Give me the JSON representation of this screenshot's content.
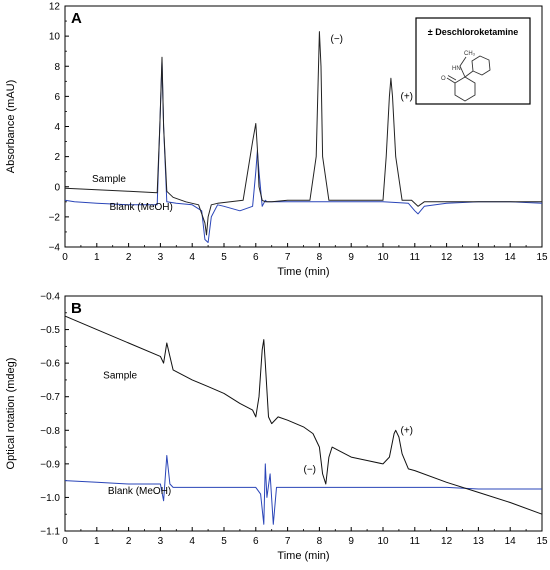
{
  "chart_data": [
    {
      "type": "line",
      "panel": "A",
      "xlabel": "Time (min)",
      "ylabel": "Absorbance (mAU)",
      "xlim": [
        0,
        15
      ],
      "ylim": [
        -4,
        12
      ],
      "xticks": [
        0,
        1,
        2,
        3,
        4,
        5,
        6,
        7,
        8,
        9,
        10,
        11,
        12,
        13,
        14,
        15
      ],
      "yticks": [
        -4,
        -2,
        0,
        2,
        4,
        6,
        8,
        10,
        12
      ],
      "grid": false,
      "inset": {
        "title": "± Deschloroketamine",
        "labels": [
          "HN",
          "CH₃",
          "O"
        ]
      },
      "annotations": [
        {
          "text": "(−)",
          "x": 8.35,
          "y": 9.6
        },
        {
          "text": "(+)",
          "x": 10.55,
          "y": 5.8
        }
      ],
      "series": [
        {
          "name": "Sample",
          "color": "#222222",
          "label_at": [
            0.85,
            0.3
          ],
          "x": [
            0,
            1,
            2,
            2.9,
            2.98,
            3.05,
            3.1,
            3.2,
            3.4,
            3.8,
            4.2,
            4.4,
            4.45,
            4.5,
            4.6,
            4.8,
            5.2,
            5.6,
            5.9,
            6.0,
            6.05,
            6.1,
            6.2,
            6.3,
            6.5,
            7.0,
            7.7,
            7.9,
            8.0,
            8.05,
            8.1,
            8.3,
            9.0,
            10.0,
            10.1,
            10.2,
            10.25,
            10.3,
            10.4,
            10.6,
            10.9,
            11.1,
            11.3,
            12,
            13,
            14,
            15
          ],
          "y": [
            -0.1,
            -0.2,
            -0.3,
            -0.4,
            4,
            8.6,
            4,
            -0.3,
            -0.7,
            -1.0,
            -1.2,
            -2.4,
            -3.2,
            -2,
            -1.2,
            -1.1,
            -1.0,
            -0.9,
            3.0,
            4.2,
            2.5,
            0,
            -0.9,
            -1.0,
            -1.0,
            -0.9,
            -0.9,
            2,
            10.3,
            8,
            2,
            -0.9,
            -0.9,
            -0.9,
            2,
            6,
            7.2,
            6,
            2,
            -0.9,
            -0.9,
            -1.3,
            -1.0,
            -1.0,
            -1.0,
            -1.0,
            -1.0
          ]
        },
        {
          "name": "Blank (MeOH)",
          "color": "#2a45b8",
          "label_at": [
            1.4,
            -1.55
          ],
          "x": [
            0,
            0.3,
            1,
            2,
            2.9,
            2.98,
            3.05,
            3.1,
            3.2,
            3.5,
            4.0,
            4.3,
            4.4,
            4.5,
            4.6,
            4.8,
            5.0,
            5.5,
            5.9,
            6.0,
            6.05,
            6.1,
            6.2,
            6.3,
            6.35,
            6.5,
            7.0,
            8.0,
            9.0,
            10.0,
            10.8,
            11.0,
            11.1,
            11.3,
            12,
            13,
            14,
            15
          ],
          "y": [
            -0.9,
            -1.0,
            -1.1,
            -1.2,
            -1.2,
            4,
            8.3,
            4,
            -1.0,
            -1.1,
            -1.2,
            -1.6,
            -3.5,
            -3.7,
            -2,
            -1.2,
            -1.3,
            -1.6,
            -1.3,
            1,
            2.4,
            1,
            -1.3,
            -0.9,
            -1.0,
            -1.0,
            -1.0,
            -1.0,
            -1.0,
            -1.0,
            -1.1,
            -1.6,
            -1.8,
            -1.3,
            -1.1,
            -1.0,
            -1.0,
            -1.1
          ]
        }
      ]
    },
    {
      "type": "line",
      "panel": "B",
      "xlabel": "Time (min)",
      "ylabel": "Optical rotation (mdeg)",
      "xlim": [
        0,
        15
      ],
      "ylim": [
        -1.1,
        -0.4
      ],
      "xticks": [
        0,
        1,
        2,
        3,
        4,
        5,
        6,
        7,
        8,
        9,
        10,
        11,
        12,
        13,
        14,
        15
      ],
      "yticks": [
        -1.1,
        -1.0,
        -0.9,
        -0.8,
        -0.7,
        -0.6,
        -0.5,
        -0.4
      ],
      "grid": false,
      "annotations": [
        {
          "text": "(−)",
          "x": 7.5,
          "y": -0.925
        },
        {
          "text": "(+)",
          "x": 10.55,
          "y": -0.81
        }
      ],
      "series": [
        {
          "name": "Sample",
          "color": "#111111",
          "label_at": [
            1.2,
            -0.645
          ],
          "x": [
            0,
            1,
            2,
            3.0,
            3.1,
            3.2,
            3.3,
            3.4,
            4.0,
            4.5,
            5.0,
            5.5,
            5.9,
            6.0,
            6.1,
            6.2,
            6.25,
            6.3,
            6.4,
            6.5,
            6.7,
            7.0,
            7.5,
            7.8,
            8.0,
            8.1,
            8.2,
            8.3,
            8.4,
            8.6,
            9.0,
            9.5,
            10.0,
            10.2,
            10.35,
            10.4,
            10.5,
            10.6,
            10.8,
            11,
            12,
            13,
            14,
            15
          ],
          "y": [
            -0.46,
            -0.5,
            -0.54,
            -0.58,
            -0.6,
            -0.54,
            -0.58,
            -0.62,
            -0.65,
            -0.67,
            -0.69,
            -0.72,
            -0.74,
            -0.76,
            -0.7,
            -0.56,
            -0.53,
            -0.6,
            -0.76,
            -0.78,
            -0.76,
            -0.77,
            -0.79,
            -0.81,
            -0.85,
            -0.93,
            -0.96,
            -0.88,
            -0.85,
            -0.86,
            -0.88,
            -0.89,
            -0.9,
            -0.88,
            -0.81,
            -0.8,
            -0.82,
            -0.87,
            -0.915,
            -0.92,
            -0.955,
            -0.985,
            -1.015,
            -1.05
          ]
        },
        {
          "name": "Blank (MeOH)",
          "color": "#2a45b8",
          "label_at": [
            1.35,
            -0.99
          ],
          "x": [
            0,
            1,
            2,
            3.0,
            3.1,
            3.2,
            3.3,
            3.4,
            4,
            5,
            6.0,
            6.15,
            6.25,
            6.3,
            6.35,
            6.45,
            6.55,
            6.65,
            7,
            8,
            9,
            10,
            11,
            12,
            13,
            14,
            15
          ],
          "y": [
            -0.95,
            -0.955,
            -0.96,
            -0.96,
            -1.01,
            -0.875,
            -0.96,
            -0.97,
            -0.97,
            -0.97,
            -0.97,
            -0.99,
            -1.08,
            -0.9,
            -1.0,
            -0.93,
            -1.08,
            -0.97,
            -0.97,
            -0.97,
            -0.97,
            -0.97,
            -0.97,
            -0.97,
            -0.975,
            -0.975,
            -0.975
          ]
        }
      ]
    }
  ]
}
